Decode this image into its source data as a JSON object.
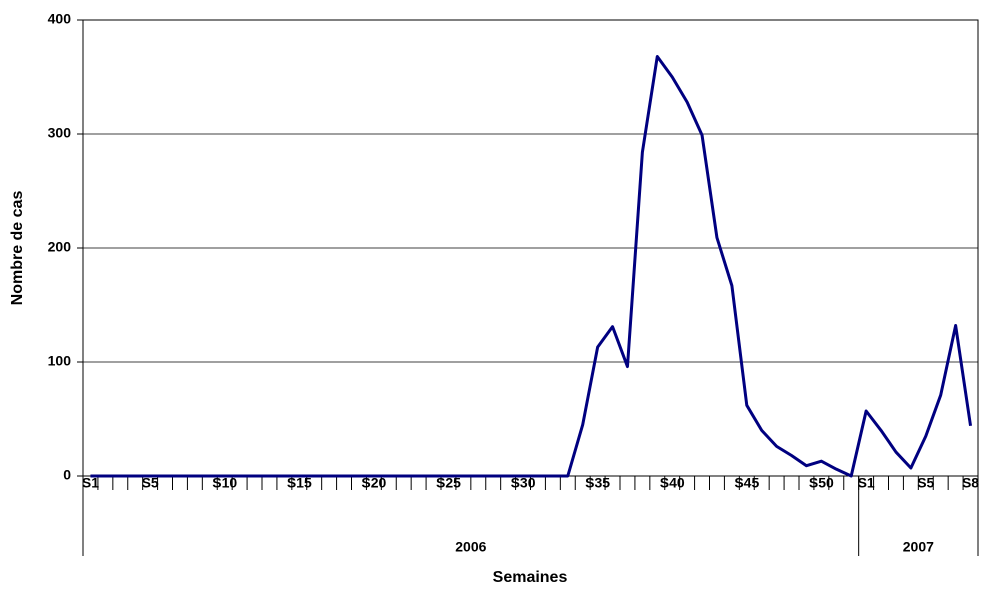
{
  "chart_data": {
    "type": "line",
    "y_label": "Nombre de cas",
    "x_label": "Semaines",
    "categories": [
      "S1",
      null,
      null,
      null,
      "S5",
      null,
      null,
      null,
      null,
      "S10",
      null,
      null,
      null,
      null,
      "S15",
      null,
      null,
      null,
      null,
      "S20",
      null,
      null,
      null,
      null,
      "S25",
      null,
      null,
      null,
      null,
      "S30",
      null,
      null,
      null,
      null,
      "S35",
      null,
      null,
      null,
      null,
      "S40",
      null,
      null,
      null,
      null,
      "S45",
      null,
      null,
      null,
      null,
      "S50",
      null,
      null,
      "S1",
      null,
      null,
      null,
      "S5",
      null,
      null,
      "S8"
    ],
    "groups": [
      "2006",
      "2007"
    ],
    "series": [
      {
        "name": "Nombre de cas",
        "color": "#000080",
        "values": [
          0,
          0,
          0,
          0,
          0,
          0,
          0,
          0,
          0,
          0,
          0,
          0,
          0,
          0,
          0,
          0,
          0,
          0,
          0,
          0,
          0,
          0,
          0,
          0,
          0,
          0,
          0,
          0,
          0,
          0,
          0,
          0,
          0,
          45,
          113,
          131,
          96,
          284,
          368,
          350,
          328,
          299,
          209,
          167,
          62,
          40,
          26,
          18,
          9,
          13,
          6,
          0,
          57,
          40,
          21,
          7,
          35,
          71,
          132,
          44
        ]
      }
    ],
    "ylim": [
      0,
      400
    ],
    "yticks": [
      0,
      100,
      200,
      300,
      400
    ],
    "grid": true
  }
}
